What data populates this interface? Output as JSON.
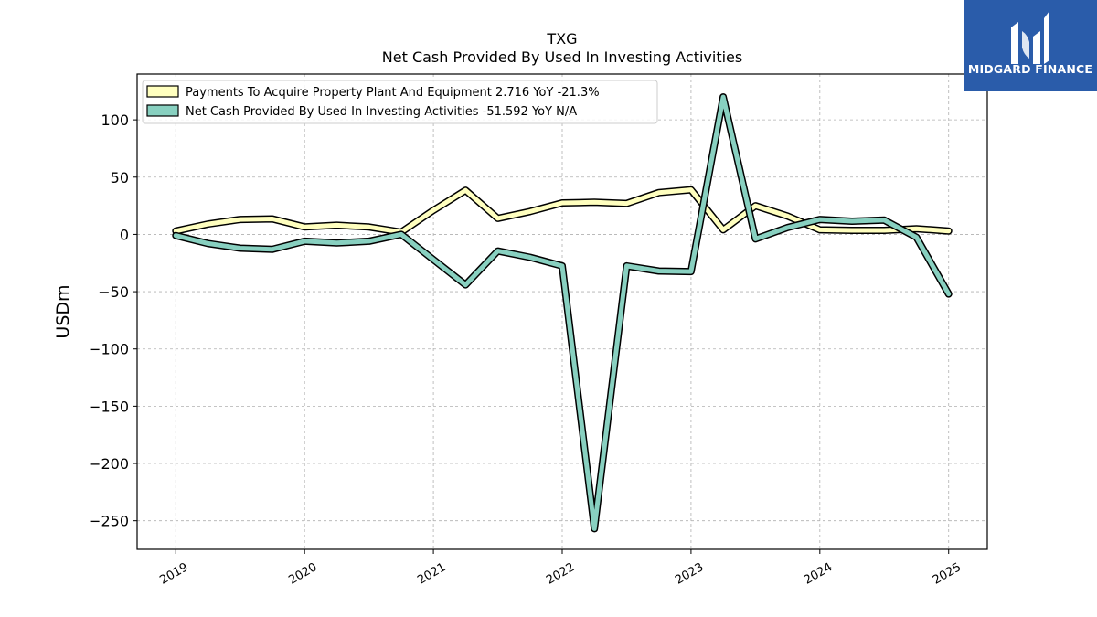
{
  "brand": {
    "name": "MIDGARD FINANCE",
    "color": "#2a5caa",
    "icon": "mf-logo-icon"
  },
  "chart_data": {
    "type": "line",
    "title": "TXG",
    "subtitle": "Net Cash Provided By Used In Investing Activities",
    "ylabel": "USDm",
    "xlabel": "",
    "ylim": [
      -275,
      140
    ],
    "yticks": [
      100,
      50,
      0,
      -50,
      -100,
      -150,
      -200,
      -250
    ],
    "ytick_labels": [
      "100",
      "50",
      "0",
      "−50",
      "−100",
      "−150",
      "−200",
      "−250"
    ],
    "xlim": [
      2018.7,
      2025.3
    ],
    "xticks": [
      2019,
      2020,
      2021,
      2022,
      2023,
      2024,
      2025
    ],
    "xtick_labels": [
      "2019",
      "2020",
      "2021",
      "2022",
      "2023",
      "2024",
      "2025"
    ],
    "grid": true,
    "legend_position": "top-left",
    "x": [
      2019.0,
      2019.25,
      2019.5,
      2019.75,
      2020.0,
      2020.25,
      2020.5,
      2020.75,
      2021.0,
      2021.25,
      2021.5,
      2021.75,
      2022.0,
      2022.25,
      2022.5,
      2022.75,
      2023.0,
      2023.25,
      2023.5,
      2023.75,
      2024.0,
      2024.25,
      2024.5,
      2024.75,
      2025.0
    ],
    "series": [
      {
        "name": "Payments To Acquire Property Plant And Equipment",
        "legend_label": "Payments To Acquire Property Plant And Equipment  2.716 YoY -21.3%",
        "color": "#ffffbf",
        "values": [
          3,
          9,
          13,
          13.5,
          6.5,
          8,
          6.5,
          2,
          21,
          38.5,
          14,
          20,
          27.5,
          28,
          27,
          36.5,
          39,
          4,
          25,
          16,
          4,
          3.5,
          3.5,
          5,
          3
        ]
      },
      {
        "name": "Net Cash Provided By Used In Investing Activities",
        "legend_label": "Net Cash Provided By Used In Investing Activities  -51.592 YoY N/A",
        "color": "#88d0c0",
        "values": [
          -1,
          -8,
          -12,
          -13,
          -6,
          -7.5,
          -6,
          0,
          -22,
          -44,
          -14.5,
          -20,
          -27.5,
          -257,
          -27.5,
          -32,
          -32.5,
          120,
          -4,
          6,
          13,
          11.5,
          12.5,
          -2.5,
          -52
        ]
      }
    ]
  }
}
